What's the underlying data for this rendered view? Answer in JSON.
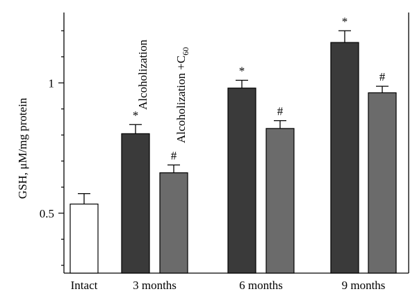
{
  "chart_data": {
    "type": "bar",
    "ylabel": "GSH, μM/mg protein",
    "ylim": [
      0.27,
      1.27
    ],
    "yticks": [
      {
        "value": 0.5,
        "label": "0.5"
      },
      {
        "value": 1.0,
        "label": "1"
      }
    ],
    "minor_yticks": [
      0.3,
      0.4,
      0.6,
      0.7,
      0.8,
      0.9,
      1.1,
      1.2
    ],
    "groups": [
      {
        "label": "Intact",
        "bars": [
          {
            "series": 0,
            "value": 0.535,
            "error": 0.04,
            "mark": ""
          }
        ]
      },
      {
        "label": "3 months",
        "bars": [
          {
            "series": 1,
            "value": 0.805,
            "error": 0.035,
            "mark": "*"
          },
          {
            "series": 2,
            "value": 0.655,
            "error": 0.03,
            "mark": "#"
          }
        ]
      },
      {
        "label": "6 months",
        "bars": [
          {
            "series": 1,
            "value": 0.98,
            "error": 0.03,
            "mark": "*"
          },
          {
            "series": 2,
            "value": 0.825,
            "error": 0.03,
            "mark": "#"
          }
        ]
      },
      {
        "label": "9 months",
        "bars": [
          {
            "series": 1,
            "value": 1.155,
            "error": 0.045,
            "mark": "*"
          },
          {
            "series": 2,
            "value": 0.962,
            "error": 0.025,
            "mark": "#"
          }
        ]
      }
    ],
    "series": [
      {
        "name": "Intact",
        "color": "#ffffff"
      },
      {
        "name": "Alcoholization",
        "color": "#3a3a3a"
      },
      {
        "name": "Alcoholization +C60",
        "name_base": "Alcoholization +C",
        "name_sub": "60",
        "color": "#6b6b6b"
      }
    ]
  }
}
